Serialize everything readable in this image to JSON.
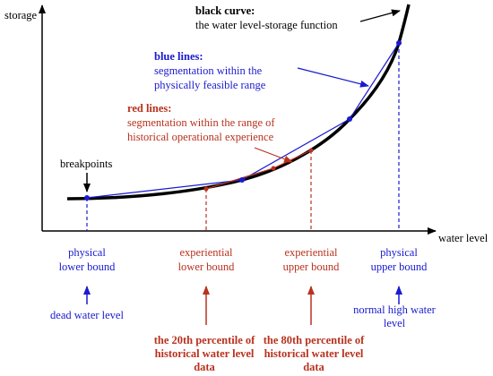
{
  "axes": {
    "y_label": "storage",
    "x_label": "water level"
  },
  "black_curve": {
    "title": "black curve",
    "text": "the water level-storage function"
  },
  "blue_lines": {
    "title": "blue lines",
    "lines": [
      "segmentation within the",
      "physically feasible range"
    ]
  },
  "red_lines": {
    "title": "red lines",
    "lines": [
      "segmentation within the range of",
      "historical operational experience"
    ]
  },
  "breakpoints": "breakpoints",
  "bounds": [
    {
      "lines": [
        "physical",
        "lower bound"
      ]
    },
    {
      "lines": [
        "experiential",
        "lower bound"
      ]
    },
    {
      "lines": [
        "experiential",
        "upper bound"
      ]
    },
    {
      "lines": [
        "physical",
        "upper bound"
      ]
    }
  ],
  "sources": [
    {
      "lines": [
        "dead water level"
      ]
    },
    {
      "lines": [
        "the 20th percentile of",
        "historical water level",
        "data"
      ]
    },
    {
      "lines": [
        "the 80th percentile of",
        "historical water level",
        "data"
      ]
    },
    {
      "lines": [
        "normal high water",
        "level"
      ]
    }
  ]
}
